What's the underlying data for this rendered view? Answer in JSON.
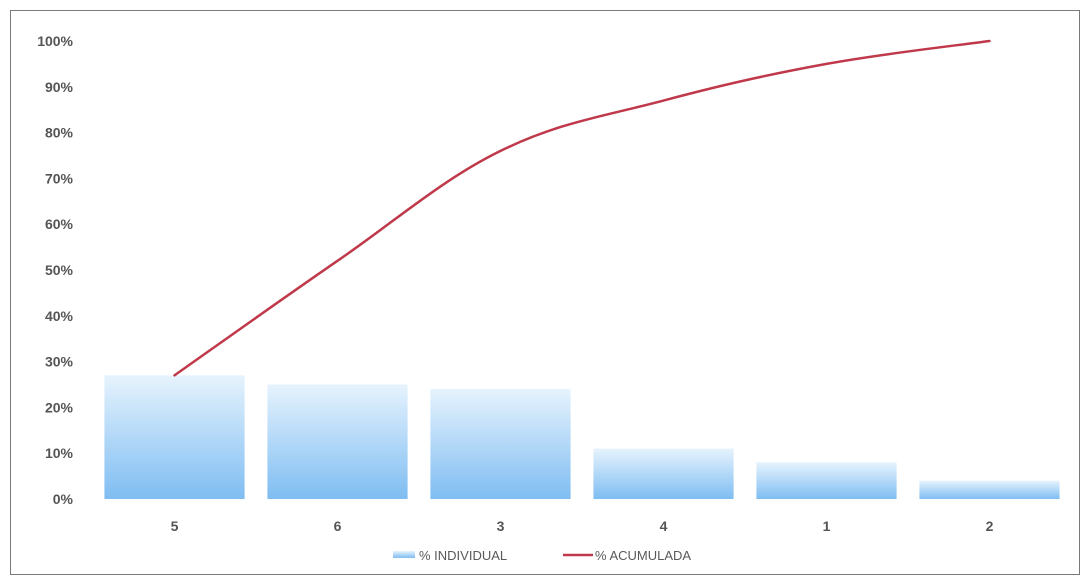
{
  "chart_data": {
    "type": "bar",
    "title": "",
    "xlabel": "",
    "ylabel": "",
    "categories": [
      "5",
      "6",
      "3",
      "4",
      "1",
      "2"
    ],
    "ylim": [
      0,
      1
    ],
    "yticks": [
      "0%",
      "10%",
      "20%",
      "30%",
      "40%",
      "50%",
      "60%",
      "70%",
      "80%",
      "90%",
      "100%"
    ],
    "grid": false,
    "legend_position": "bottom",
    "series": [
      {
        "name": "% INDIVIDUAL",
        "type": "bar",
        "color": "#8fc8f5",
        "values": [
          0.27,
          0.25,
          0.24,
          0.11,
          0.08,
          0.04
        ]
      },
      {
        "name": "% ACUMULADA",
        "type": "line",
        "color": "#c0394b",
        "values": [
          0.27,
          0.52,
          0.76,
          0.87,
          0.95,
          1.0
        ]
      }
    ]
  }
}
